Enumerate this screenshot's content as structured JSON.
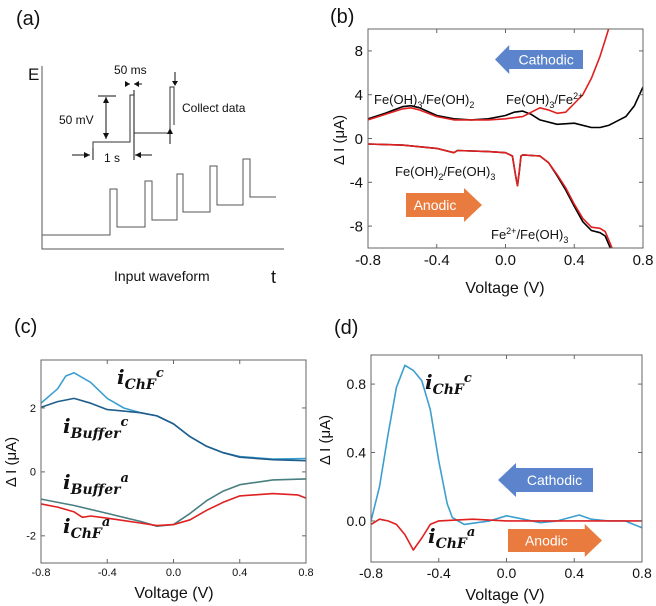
{
  "panel_a": {
    "label": "(a)",
    "y_axis": "E",
    "x_axis": "t",
    "caption": "Input waveform",
    "pulse_width": "50 ms",
    "pulse_height": "50 mV",
    "step_time": "1 s",
    "collect": "Collect data"
  },
  "chart_data": [
    {
      "panel": "(b)",
      "type": "line",
      "xlabel": "Voltage (V)",
      "ylabel": "Δ I (μA)",
      "xlim": [
        -0.8,
        0.8
      ],
      "ylim": [
        -10,
        10
      ],
      "xticks": [
        "-0.8",
        "-0.4",
        "0.0",
        "0.4",
        "0.8"
      ],
      "xtick_values": [
        -0.8,
        -0.4,
        0.0,
        0.4,
        0.8
      ],
      "yticks": [
        "8",
        "4",
        "0",
        "-4",
        "-8"
      ],
      "ytick_values": [
        8,
        4,
        0,
        -4,
        -8
      ],
      "arrows": [
        {
          "label": "Cathodic",
          "direction": "left",
          "color": "#5b84cc"
        },
        {
          "label": "Anodic",
          "direction": "right",
          "color": "#ea7b3e"
        }
      ],
      "annotations": [
        {
          "parts": [
            "Fe(OH)",
            "3",
            "/Fe(OH)",
            "2"
          ]
        },
        {
          "parts": [
            "Fe(OH)",
            "3",
            "/Fe",
            "2+"
          ]
        },
        {
          "parts": [
            "Fe(OH)",
            "2",
            "/Fe(OH)",
            "3"
          ]
        },
        {
          "parts": [
            "Fe",
            "2+",
            "/Fe(OH)",
            "3"
          ]
        }
      ],
      "series": [
        {
          "name": "black-cathodic",
          "color": "#000000",
          "points": [
            [
              -0.8,
              1.8
            ],
            [
              -0.7,
              2.3
            ],
            [
              -0.6,
              2.9
            ],
            [
              -0.55,
              3.0
            ],
            [
              -0.5,
              2.8
            ],
            [
              -0.4,
              2.1
            ],
            [
              -0.3,
              1.8
            ],
            [
              -0.2,
              1.7
            ],
            [
              -0.1,
              1.8
            ],
            [
              0,
              2.1
            ],
            [
              0.05,
              2.4
            ],
            [
              0.1,
              2.5
            ],
            [
              0.15,
              2.2
            ],
            [
              0.2,
              1.7
            ],
            [
              0.3,
              1.3
            ],
            [
              0.4,
              1.4
            ],
            [
              0.5,
              1.0
            ],
            [
              0.55,
              1.0
            ],
            [
              0.6,
              1.2
            ],
            [
              0.7,
              2.0
            ],
            [
              0.75,
              3.0
            ],
            [
              0.8,
              4.7
            ]
          ]
        },
        {
          "name": "red-cathodic",
          "color": "#e02020",
          "points": [
            [
              -0.8,
              1.7
            ],
            [
              -0.7,
              2.2
            ],
            [
              -0.6,
              2.7
            ],
            [
              -0.55,
              2.8
            ],
            [
              -0.5,
              2.6
            ],
            [
              -0.4,
              2.0
            ],
            [
              -0.3,
              1.7
            ],
            [
              -0.1,
              1.7
            ],
            [
              0,
              1.8
            ],
            [
              0.1,
              2.0
            ],
            [
              0.15,
              2.4
            ],
            [
              0.2,
              2.8
            ],
            [
              0.25,
              2.6
            ],
            [
              0.3,
              2.3
            ],
            [
              0.35,
              2.4
            ],
            [
              0.4,
              3.2
            ],
            [
              0.45,
              4.0
            ],
            [
              0.5,
              5.5
            ],
            [
              0.55,
              7.5
            ],
            [
              0.58,
              9
            ],
            [
              0.6,
              10
            ]
          ]
        },
        {
          "name": "black-anodic",
          "color": "#000000",
          "points": [
            [
              -0.8,
              -0.5
            ],
            [
              -0.6,
              -0.6
            ],
            [
              -0.4,
              -0.9
            ],
            [
              -0.3,
              -1.3
            ],
            [
              -0.28,
              -1.1
            ],
            [
              -0.1,
              -1.2
            ],
            [
              0.0,
              -1.3
            ],
            [
              0.04,
              -1.6
            ],
            [
              0.06,
              -3.5
            ],
            [
              0.07,
              -4.3
            ],
            [
              0.08,
              -3.0
            ],
            [
              0.09,
              -1.6
            ],
            [
              0.1,
              -1.5
            ],
            [
              0.2,
              -1.6
            ],
            [
              0.25,
              -2.2
            ],
            [
              0.3,
              -3.4
            ],
            [
              0.35,
              -4.7
            ],
            [
              0.4,
              -6.2
            ],
            [
              0.45,
              -7.6
            ],
            [
              0.5,
              -8.4
            ],
            [
              0.55,
              -8.6
            ],
            [
              0.58,
              -8.9
            ],
            [
              0.61,
              -10
            ]
          ]
        },
        {
          "name": "red-anodic",
          "color": "#e02020",
          "points": [
            [
              -0.8,
              -0.5
            ],
            [
              -0.6,
              -0.6
            ],
            [
              -0.4,
              -0.9
            ],
            [
              -0.3,
              -1.3
            ],
            [
              -0.28,
              -1.1
            ],
            [
              -0.1,
              -1.2
            ],
            [
              0.0,
              -1.3
            ],
            [
              0.04,
              -1.6
            ],
            [
              0.06,
              -3.5
            ],
            [
              0.07,
              -4.3
            ],
            [
              0.08,
              -3.0
            ],
            [
              0.09,
              -1.6
            ],
            [
              0.1,
              -1.5
            ],
            [
              0.2,
              -1.6
            ],
            [
              0.25,
              -2.2
            ],
            [
              0.3,
              -3.3
            ],
            [
              0.35,
              -4.5
            ],
            [
              0.4,
              -6.0
            ],
            [
              0.45,
              -7.3
            ],
            [
              0.5,
              -8.1
            ],
            [
              0.55,
              -8.2
            ],
            [
              0.58,
              -8.5
            ],
            [
              0.62,
              -10
            ]
          ]
        }
      ]
    },
    {
      "panel": "(c)",
      "type": "line",
      "xlabel": "Voltage (V)",
      "ylabel": "Δ I (μA)",
      "xlim": [
        -0.8,
        0.8
      ],
      "ylim": [
        -2.85,
        3.5
      ],
      "xticks": [
        "-0.8",
        "-0.4",
        "0.0",
        "0.4",
        "0.8"
      ],
      "xtick_values": [
        -0.8,
        -0.4,
        0.0,
        0.4,
        0.8
      ],
      "yticks": [
        "2",
        "0",
        "-2"
      ],
      "ytick_values": [
        2,
        0,
        -2
      ],
      "annotations": [
        {
          "parts": [
            "i",
            "ChF",
            "c"
          ]
        },
        {
          "parts": [
            "i",
            "Buffer",
            "c"
          ]
        },
        {
          "parts": [
            "i",
            "Buffer",
            "a"
          ]
        },
        {
          "parts": [
            "i",
            "ChF",
            "a"
          ]
        }
      ],
      "series": [
        {
          "name": "i_ChF_c",
          "color": "#3c9fd0",
          "points": [
            [
              -0.8,
              2.15
            ],
            [
              -0.7,
              2.6
            ],
            [
              -0.65,
              3.0
            ],
            [
              -0.6,
              3.1
            ],
            [
              -0.5,
              2.8
            ],
            [
              -0.4,
              2.3
            ],
            [
              -0.3,
              2.0
            ],
            [
              -0.2,
              1.85
            ],
            [
              -0.1,
              1.75
            ],
            [
              0,
              1.5
            ],
            [
              0.1,
              1.1
            ],
            [
              0.2,
              0.8
            ],
            [
              0.3,
              0.6
            ],
            [
              0.4,
              0.48
            ],
            [
              0.6,
              0.4
            ],
            [
              0.8,
              0.42
            ]
          ]
        },
        {
          "name": "i_Buffer_c",
          "color": "#1f5e8c",
          "points": [
            [
              -0.8,
              2.02
            ],
            [
              -0.7,
              2.2
            ],
            [
              -0.6,
              2.3
            ],
            [
              -0.5,
              2.15
            ],
            [
              -0.4,
              1.95
            ],
            [
              -0.3,
              1.9
            ],
            [
              -0.2,
              1.85
            ],
            [
              -0.1,
              1.75
            ],
            [
              0,
              1.5
            ],
            [
              0.1,
              1.1
            ],
            [
              0.2,
              0.8
            ],
            [
              0.3,
              0.6
            ],
            [
              0.4,
              0.46
            ],
            [
              0.6,
              0.38
            ],
            [
              0.8,
              0.35
            ]
          ]
        },
        {
          "name": "i_Buffer_a",
          "color": "#4a7e80",
          "points": [
            [
              -0.8,
              -0.85
            ],
            [
              -0.6,
              -1.05
            ],
            [
              -0.4,
              -1.3
            ],
            [
              -0.2,
              -1.55
            ],
            [
              -0.1,
              -1.7
            ],
            [
              0,
              -1.65
            ],
            [
              0.1,
              -1.3
            ],
            [
              0.2,
              -0.9
            ],
            [
              0.3,
              -0.6
            ],
            [
              0.4,
              -0.4
            ],
            [
              0.6,
              -0.25
            ],
            [
              0.8,
              -0.22
            ]
          ]
        },
        {
          "name": "i_ChF_a",
          "color": "#e02020",
          "points": [
            [
              -0.8,
              -1.0
            ],
            [
              -0.7,
              -1.1
            ],
            [
              -0.6,
              -1.25
            ],
            [
              -0.55,
              -1.42
            ],
            [
              -0.5,
              -1.38
            ],
            [
              -0.4,
              -1.45
            ],
            [
              -0.2,
              -1.6
            ],
            [
              -0.1,
              -1.68
            ],
            [
              0,
              -1.65
            ],
            [
              0.1,
              -1.5
            ],
            [
              0.2,
              -1.2
            ],
            [
              0.3,
              -0.95
            ],
            [
              0.4,
              -0.75
            ],
            [
              0.6,
              -0.68
            ],
            [
              0.75,
              -0.72
            ],
            [
              0.8,
              -0.82
            ]
          ]
        }
      ]
    },
    {
      "panel": "(d)",
      "type": "line",
      "xlabel": "Voltage (V)",
      "ylabel": "Δ I (μA)",
      "xlim": [
        -0.8,
        0.8
      ],
      "ylim": [
        -0.24,
        0.97
      ],
      "xticks": [
        "-0.8",
        "-0.4",
        "0.0",
        "0.4",
        "0.8"
      ],
      "xtick_values": [
        -0.8,
        -0.4,
        0.0,
        0.4,
        0.8
      ],
      "yticks": [
        "0.8",
        "0.4",
        "0.0"
      ],
      "ytick_values": [
        0.8,
        0.4,
        0.0
      ],
      "arrows": [
        {
          "label": "Cathodic",
          "direction": "left",
          "color": "#5b84cc"
        },
        {
          "label": "Anodic",
          "direction": "right",
          "color": "#ea7b3e"
        }
      ],
      "annotations": [
        {
          "parts": [
            "i",
            "ChF",
            "c"
          ]
        },
        {
          "parts": [
            "i",
            "ChF",
            "a"
          ]
        }
      ],
      "series": [
        {
          "name": "i_ChF_c",
          "color": "#3c9fd0",
          "points": [
            [
              -0.8,
              0.0
            ],
            [
              -0.75,
              0.2
            ],
            [
              -0.7,
              0.5
            ],
            [
              -0.65,
              0.78
            ],
            [
              -0.6,
              0.91
            ],
            [
              -0.55,
              0.88
            ],
            [
              -0.5,
              0.82
            ],
            [
              -0.45,
              0.65
            ],
            [
              -0.4,
              0.35
            ],
            [
              -0.35,
              0.1
            ],
            [
              -0.32,
              0.02
            ],
            [
              -0.25,
              -0.02
            ],
            [
              -0.1,
              0.0
            ],
            [
              0,
              0.03
            ],
            [
              0.1,
              0.01
            ],
            [
              0.2,
              -0.01
            ],
            [
              0.3,
              0.0
            ],
            [
              0.43,
              0.035
            ],
            [
              0.5,
              0.01
            ],
            [
              0.6,
              0.0
            ],
            [
              0.7,
              0.0
            ],
            [
              0.8,
              -0.04
            ]
          ]
        },
        {
          "name": "i_ChF_a",
          "color": "#e02020",
          "points": [
            [
              -0.8,
              -0.02
            ],
            [
              -0.75,
              0.01
            ],
            [
              -0.7,
              0.0
            ],
            [
              -0.65,
              -0.02
            ],
            [
              -0.6,
              -0.08
            ],
            [
              -0.55,
              -0.17
            ],
            [
              -0.5,
              -0.1
            ],
            [
              -0.45,
              -0.02
            ],
            [
              -0.4,
              0.0
            ],
            [
              -0.2,
              0.01
            ],
            [
              0,
              0.0
            ],
            [
              0.4,
              0.0
            ],
            [
              0.8,
              0.0
            ]
          ]
        }
      ]
    }
  ]
}
